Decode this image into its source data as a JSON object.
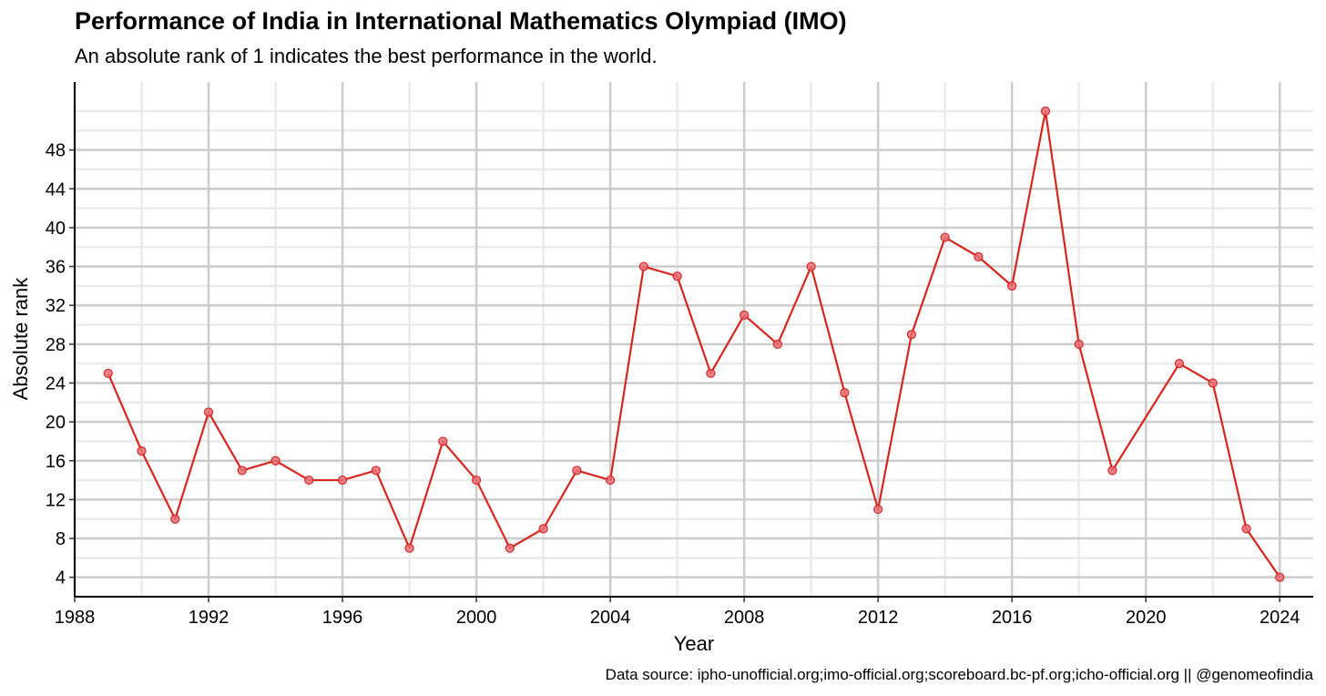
{
  "chart_data": {
    "type": "line",
    "title": "Performance of India in International Mathematics Olympiad (IMO)",
    "subtitle": "An absolute rank of 1 indicates the best performance in the world.",
    "xlabel": "Year",
    "ylabel": "Absolute rank",
    "caption": "Data source: ipho-unofficial.org;imo-official.org;scoreboard.bc-pf.org;icho-official.org || @genomeofindia",
    "xlim": [
      1988,
      2025
    ],
    "ylim": [
      2,
      55
    ],
    "x_ticks": [
      1988,
      1992,
      1996,
      2000,
      2004,
      2008,
      2012,
      2016,
      2020,
      2024
    ],
    "y_ticks": [
      4,
      8,
      12,
      16,
      20,
      24,
      28,
      32,
      36,
      40,
      44,
      48
    ],
    "grid": true,
    "line_color": "#d7261e",
    "point_color": "#e8707a",
    "series": [
      {
        "x": [
          1989,
          1990,
          1991,
          1992,
          1993,
          1994,
          1995,
          1996,
          1997,
          1998,
          1999,
          2000,
          2001,
          2002,
          2003,
          2004,
          2005,
          2006,
          2007,
          2008,
          2009,
          2010,
          2011,
          2012,
          2013,
          2014,
          2015,
          2016,
          2017,
          2018,
          2019,
          2021,
          2022,
          2023,
          2024
        ],
        "values": [
          25,
          17,
          10,
          21,
          15,
          16,
          14,
          14,
          15,
          7,
          18,
          14,
          7,
          9,
          15,
          14,
          36,
          35,
          25,
          31,
          28,
          36,
          23,
          11,
          29,
          39,
          37,
          34,
          52,
          28,
          15,
          26,
          24,
          9,
          4
        ]
      }
    ]
  }
}
